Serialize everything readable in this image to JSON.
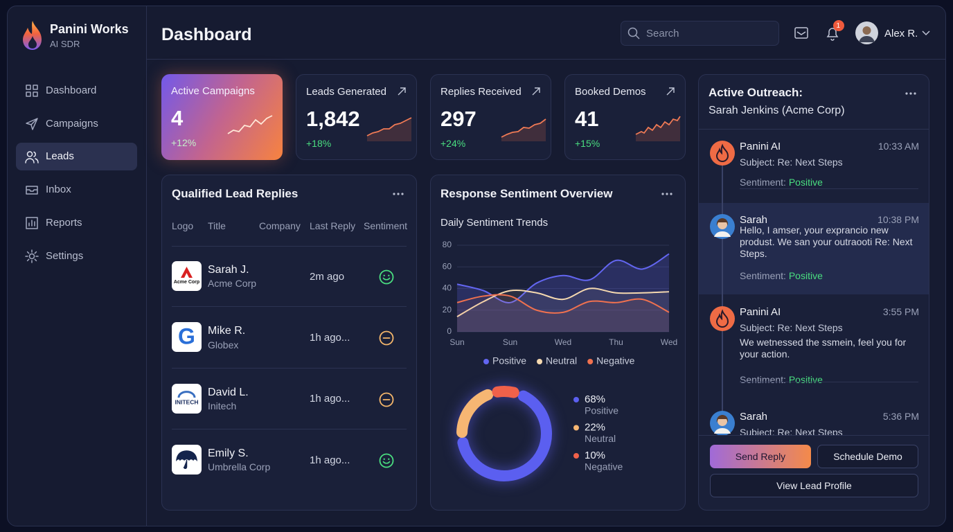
{
  "sidebar": {
    "brand": "Panini Works",
    "subtitle": "AI SDR",
    "nav": [
      "Dashboard",
      "Campaigns",
      "Leads",
      "Inbox",
      "Reports",
      "Settings"
    ],
    "active": 2
  },
  "header": {
    "title": "Dashboard",
    "search": "Search",
    "notifications": "1",
    "user": "Alex R."
  },
  "stats": [
    {
      "label": "Active Campaigns",
      "value": "4",
      "change": "+12%"
    },
    {
      "label": "Leads Generated",
      "value": "1,842",
      "change": "+18%"
    },
    {
      "label": "Replies Received",
      "value": "297",
      "change": "+24%"
    },
    {
      "label": "Booked Demos",
      "value": "41",
      "change": "+15%"
    }
  ],
  "leads": {
    "title": "Qualified Lead Replies",
    "columns": [
      "Logo",
      "Title",
      "Company",
      "Last Reply",
      "Sentiment"
    ],
    "rows": [
      {
        "logo": "Acme Corp",
        "name": "Sarah J.",
        "company": "Acme Corp",
        "last_reply": "2m ago",
        "sentiment": "positive"
      },
      {
        "logo": "G",
        "name": "Mike R.",
        "company": "Globex",
        "last_reply": "1h ago...",
        "sentiment": "neutral"
      },
      {
        "logo": "INITECH",
        "name": "David L.",
        "company": "Initech",
        "last_reply": "1h ago...",
        "sentiment": "neutral"
      },
      {
        "name": "Emily S.",
        "company": "Umbrella Corp",
        "last_reply": "1h ago...",
        "sentiment": "positive"
      }
    ]
  },
  "sentiment": {
    "title": "Response Sentiment Overview",
    "chart": {
      "type": "line",
      "title": "Daily Sentiment Trends",
      "categories": [
        "Sun",
        null,
        "Sun",
        null,
        "Wed",
        null,
        "Thu",
        null,
        "Wed"
      ],
      "ylim": [
        0,
        80
      ],
      "yticks": [
        0,
        20,
        40,
        60,
        80
      ],
      "grid": true,
      "series": [
        {
          "name": "Positive",
          "color": "#6366f1",
          "values": [
            44,
            38,
            27,
            45,
            52,
            48,
            66,
            58,
            72
          ]
        },
        {
          "name": "Neutral",
          "color": "#f5d9b0",
          "values": [
            14,
            28,
            38,
            36,
            30,
            40,
            36,
            36,
            37
          ]
        },
        {
          "name": "Negative",
          "color": "#f0714f",
          "values": [
            27,
            33,
            33,
            20,
            18,
            28,
            27,
            30,
            18
          ]
        }
      ]
    },
    "donut": {
      "type": "pie",
      "labels": [
        "Positive",
        "Neutral",
        "Negative"
      ],
      "values": [
        68,
        22,
        10
      ],
      "value_labels": [
        "68%",
        "22%",
        "10%"
      ],
      "colors": [
        "#5b5ff0",
        "#f6b673",
        "#f0614a"
      ]
    }
  },
  "outreach": {
    "title": "Active Outreach:",
    "subtitle": "Sarah Jenkins (Acme Corp)",
    "messages": [
      {
        "sender": "Panini AI",
        "time": "10:33 AM",
        "subject_label": "Subject:",
        "subject": "Re: Next Steps",
        "sentiment_label": "Sentiment:",
        "sentiment": "Positive"
      },
      {
        "sender": "Sarah",
        "time": "10:38 PM",
        "body": "Hello, I amser, your exprancio new produst. We san your outraooti Re: Next Steps.",
        "sentiment_label": "Sentiment:",
        "sentiment": "Positive"
      },
      {
        "sender": "Panini AI",
        "time": "3:55 PM",
        "subject_label": "Subject:",
        "subject": "Re: Next Steps",
        "body": "We wetnessed the ssmein, feel you for your action.",
        "sentiment_label": "Sentiment:",
        "sentiment": "Positive"
      },
      {
        "sender": "Sarah",
        "time": "5:36 PM",
        "subject_label": "Subject:",
        "subject": "Re: Next Steps"
      }
    ],
    "buttons": [
      "Send Reply",
      "Schedule Demo",
      "View Lead Profile"
    ]
  }
}
